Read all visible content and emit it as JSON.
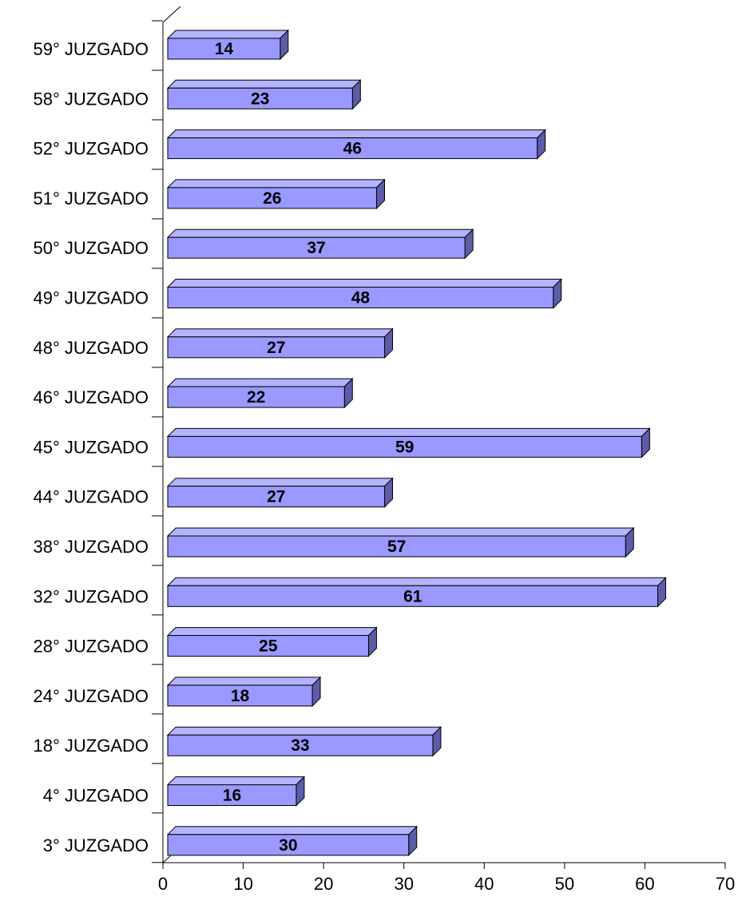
{
  "chart_data": {
    "type": "bar",
    "orientation": "horizontal",
    "style": "3d",
    "categories": [
      "59° JUZGADO",
      "58° JUZGADO",
      "52° JUZGADO",
      "51° JUZGADO",
      "50° JUZGADO",
      "49° JUZGADO",
      "48° JUZGADO",
      "46° JUZGADO",
      "45° JUZGADO",
      "44° JUZGADO",
      "38° JUZGADO",
      "32° JUZGADO",
      "28° JUZGADO",
      "24° JUZGADO",
      "18° JUZGADO",
      "4° JUZGADO",
      "3° JUZGADO"
    ],
    "values": [
      14,
      23,
      46,
      26,
      37,
      48,
      27,
      22,
      59,
      27,
      57,
      61,
      25,
      18,
      33,
      16,
      30
    ],
    "xlim": [
      0,
      70
    ],
    "xticks": [
      0,
      10,
      20,
      30,
      40,
      50,
      60,
      70
    ],
    "grid": false,
    "legend": "none",
    "colors": {
      "bar_front": "#9999ff",
      "bar_top": "#b3b3ff",
      "bar_side": "#5c5ca8",
      "outline": "#000000"
    }
  }
}
